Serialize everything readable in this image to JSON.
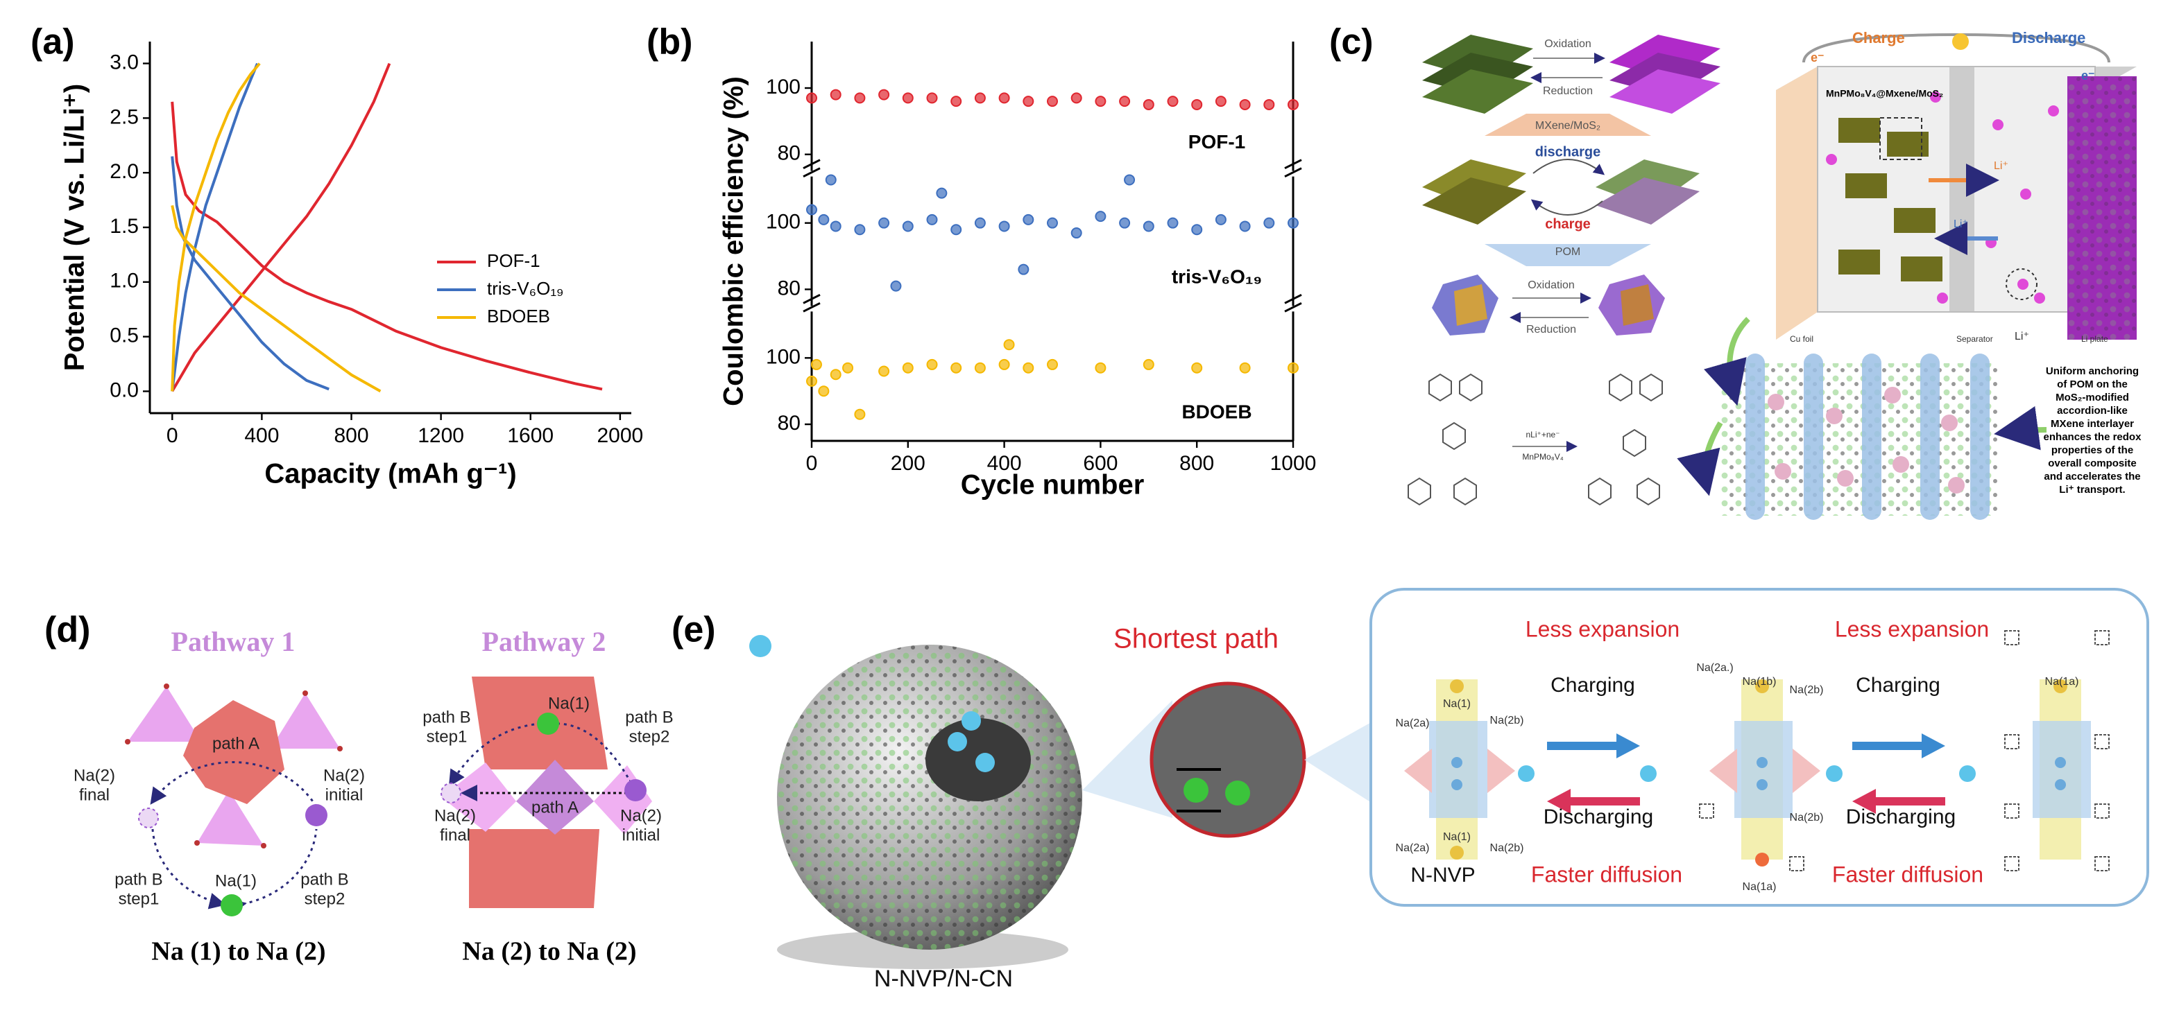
{
  "panel_labels": [
    "(a)",
    "(b)",
    "(c)",
    "(d)",
    "(e)"
  ],
  "chart_data": [
    {
      "type": "line",
      "xlabel": "Capacity (mAh g⁻¹)",
      "ylabel": "Potential  (V vs. Li/Li⁺)",
      "xlim": [
        -100,
        2050
      ],
      "xticks": [
        0,
        400,
        800,
        1200,
        1600,
        2000
      ],
      "ylim": [
        -0.2,
        3.2
      ],
      "yticks": [
        {
          "value": 0,
          "label": "0.0"
        },
        0.5,
        {
          "value": 1,
          "label": "1.0"
        },
        1.5,
        {
          "value": 2,
          "label": "2.0"
        },
        2.5,
        {
          "value": 3,
          "label": "3.0"
        }
      ],
      "legend": "center right",
      "series": [
        {
          "name": "POF-1",
          "color": "#e0262f",
          "x": [
            0,
            20,
            60,
            120,
            200,
            300,
            400,
            500,
            600,
            700,
            800,
            1000,
            1200,
            1400,
            1600,
            1800,
            1920,
            null,
            0,
            100,
            200,
            300,
            400,
            500,
            600,
            700,
            800,
            900,
            970
          ],
          "values": [
            2.65,
            2.1,
            1.8,
            1.65,
            1.55,
            1.35,
            1.15,
            1.0,
            0.9,
            0.82,
            0.75,
            0.55,
            0.4,
            0.28,
            0.17,
            0.07,
            0.02,
            null,
            0,
            0.35,
            0.6,
            0.85,
            1.1,
            1.35,
            1.6,
            1.9,
            2.25,
            2.65,
            3.0
          ]
        },
        {
          "name": "tris-V₆O₁₉",
          "color": "#3d6fbf",
          "x": [
            0,
            20,
            50,
            100,
            200,
            300,
            400,
            500,
            600,
            700,
            null,
            0,
            30,
            60,
            100,
            150,
            200,
            250,
            300,
            350,
            380
          ],
          "values": [
            2.15,
            1.7,
            1.4,
            1.2,
            0.95,
            0.7,
            0.45,
            0.25,
            0.1,
            0.02,
            null,
            0,
            0.5,
            0.9,
            1.3,
            1.7,
            2.0,
            2.3,
            2.6,
            2.85,
            3.0
          ]
        },
        {
          "name": "BDOEB",
          "color": "#f5b800",
          "x": [
            0,
            20,
            50,
            100,
            200,
            300,
            400,
            500,
            600,
            700,
            800,
            930,
            null,
            0,
            10,
            30,
            60,
            100,
            150,
            200,
            250,
            300,
            350,
            390
          ],
          "values": [
            1.7,
            1.5,
            1.4,
            1.3,
            1.1,
            0.9,
            0.75,
            0.6,
            0.45,
            0.3,
            0.15,
            0.0,
            null,
            0,
            0.6,
            1.0,
            1.4,
            1.7,
            2.0,
            2.3,
            2.55,
            2.75,
            2.9,
            3.0
          ]
        }
      ]
    },
    {
      "type": "scatter",
      "xlabel": "Cycle number",
      "ylabel": "Coulombic efficiency (%)",
      "xlim": [
        0,
        1000
      ],
      "xticks": [
        0,
        200,
        400,
        600,
        800,
        1000
      ],
      "ylim": [
        75,
        114
      ],
      "yticks": [
        80,
        100
      ],
      "series": [
        {
          "name": "POF-1",
          "color": "#e0262f",
          "x": [
            0,
            50,
            100,
            150,
            200,
            250,
            300,
            350,
            400,
            450,
            500,
            550,
            600,
            650,
            700,
            750,
            800,
            850,
            900,
            950,
            1000
          ],
          "values": [
            97,
            98,
            97,
            98,
            97,
            97,
            96,
            97,
            97,
            96,
            96,
            97,
            96,
            96,
            95,
            96,
            95,
            96,
            95,
            95,
            95
          ]
        },
        {
          "name": "tris-V₆O₁₉",
          "color": "#3d6fbf",
          "x": [
            0,
            25,
            40,
            50,
            100,
            150,
            175,
            200,
            250,
            270,
            300,
            350,
            400,
            440,
            450,
            500,
            550,
            600,
            650,
            660,
            700,
            750,
            800,
            850,
            900,
            950,
            1000
          ],
          "values": [
            104,
            101,
            113,
            99,
            98,
            100,
            81,
            99,
            101,
            109,
            98,
            100,
            99,
            86,
            101,
            100,
            97,
            102,
            100,
            113,
            99,
            100,
            98,
            101,
            99,
            100,
            100
          ]
        },
        {
          "name": "BDOEB",
          "color": "#f5b800",
          "x": [
            0,
            10,
            25,
            50,
            75,
            100,
            150,
            200,
            250,
            300,
            350,
            400,
            410,
            450,
            500,
            600,
            700,
            800,
            900,
            1000
          ],
          "values": [
            93,
            98,
            90,
            95,
            97,
            83,
            96,
            97,
            98,
            97,
            97,
            98,
            104,
            97,
            98,
            97,
            98,
            97,
            97,
            97
          ]
        }
      ]
    }
  ],
  "diagram_c": {
    "top_arrow": [
      "Oxidation",
      "Reduction"
    ],
    "mxene": "MXene/MoS₂",
    "cycle": [
      "discharge",
      "charge"
    ],
    "pom": "POM",
    "pom_arrow": [
      "Oxidation",
      "Reduction"
    ],
    "reaction": [
      "nLi⁺+ne⁻",
      "MnPMo₈V₄"
    ],
    "battery": {
      "charge": "Charge",
      "discharge": "Discharge",
      "electron": "e⁻",
      "composite": "MnPMo₈V₄@Mxene/MoS₂",
      "ion": "Li⁺",
      "labels": [
        "Cu foil",
        "Separator",
        "Li⁺",
        "Li plate"
      ]
    },
    "note": [
      "Uniform anchoring",
      "of POM on the",
      "MoS₂-modified",
      "accordion-like",
      "MXene interlayer",
      "enhances the redox",
      "properties of the",
      "overall composite",
      "and accelerates the",
      "Li⁺ transport."
    ]
  },
  "diagram_d": {
    "pathways": [
      {
        "title": "Pathway 1",
        "labels": [
          "path A",
          "Na(2)",
          "final",
          "initial",
          "Na(1)",
          "path B",
          "step1",
          "step2"
        ],
        "caption": "Na (1) to Na (2)"
      },
      {
        "title": "Pathway 2",
        "labels": [
          "Na(1)",
          "path B",
          "step1",
          "step2",
          "path A",
          "Na(2)",
          "final",
          "initial"
        ],
        "caption": "Na (2) to Na (2)"
      }
    ]
  },
  "diagram_e": {
    "zoom": "Shortest path",
    "caption": "N-NVP/N-CN",
    "expansion": [
      "Less expansion",
      "Less expansion"
    ],
    "charging": [
      "Charging",
      "Charging"
    ],
    "discharging": [
      "Discharging",
      "Discharging"
    ],
    "diffusion": [
      "Faster diffusion",
      "Faster diffusion"
    ],
    "state": "N-NVP",
    "sites": [
      "Na(2a)",
      "Na(1)",
      "Na(2b)",
      "Na(2a)",
      "Na(2b)",
      "Na(1)",
      "Na(2a.)",
      "Na(1b)",
      "Na(2b)",
      "Na(2b)",
      "Na(1a)",
      "Na(1a)"
    ]
  }
}
